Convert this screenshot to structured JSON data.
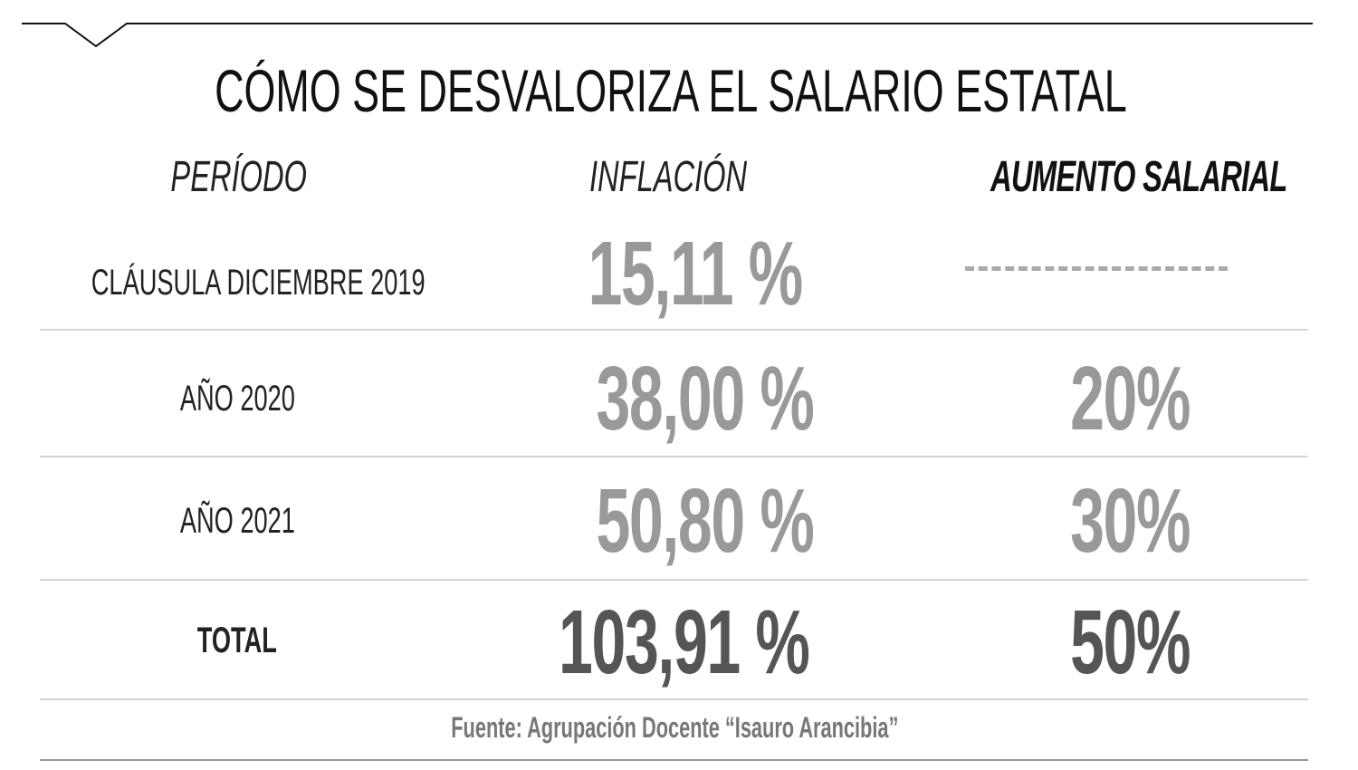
{
  "title": "CÓMO SE DESVALORIZA EL SALARIO ESTATAL",
  "chart_data": {
    "type": "table",
    "title": "CÓMO SE DESVALORIZA EL SALARIO ESTATAL",
    "columns": [
      "PERÍODO",
      "INFLACIÓN",
      "AUMENTO SALARIAL"
    ],
    "rows": [
      {
        "period": "CLÁUSULA DICIEMBRE 2019",
        "inflation": "15,11 %",
        "raise": "----------"
      },
      {
        "period": "AÑO 2020",
        "inflation": "38,00 %",
        "raise": "20%"
      },
      {
        "period": "AÑO 2021",
        "inflation": "50,80 %",
        "raise": "30%"
      },
      {
        "period": "TOTAL",
        "inflation": "103,91 %",
        "raise": "50%"
      }
    ],
    "source": "Fuente: Agrupación Docente “Isauro Arancibia”"
  },
  "colors": {
    "value": "#999999",
    "total_value": "#555555",
    "rule": "#d4d4d4"
  }
}
